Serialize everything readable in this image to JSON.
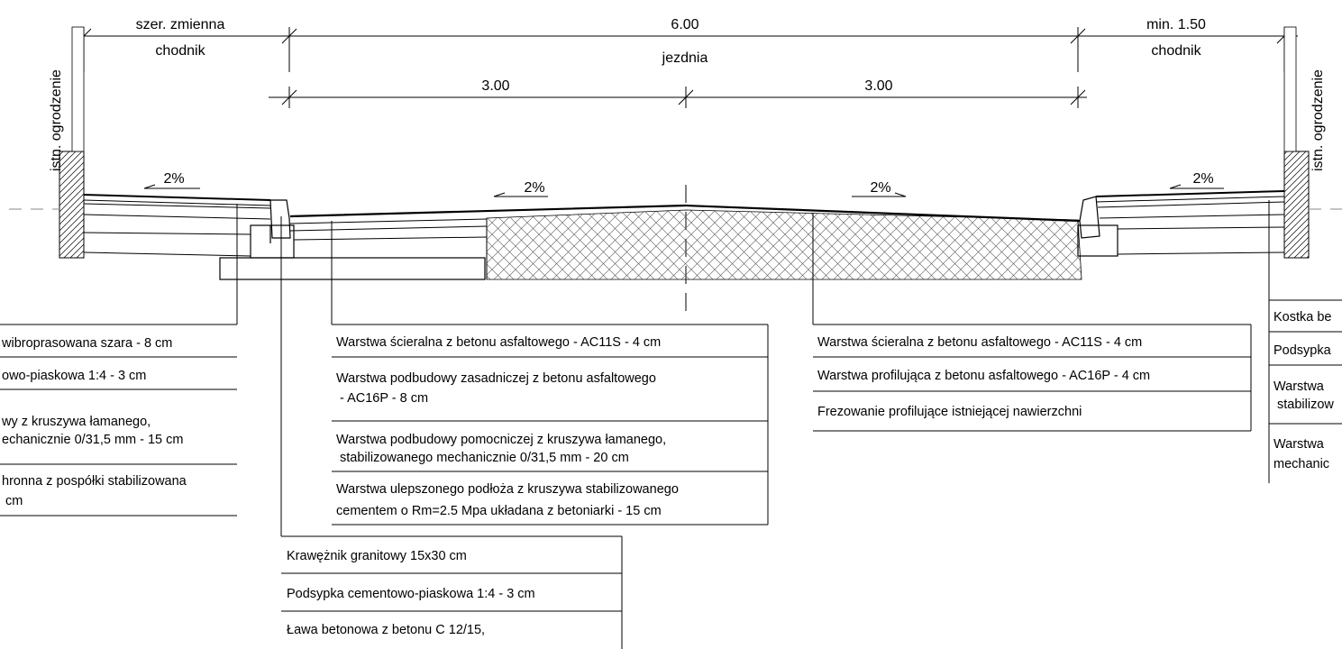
{
  "dimensions": {
    "left_walk_width": "szer. zmienna",
    "left_walk_name": "chodnik",
    "road_width": "6.00",
    "road_name": "jezdnia",
    "right_walk_width": "min. 1.50",
    "right_walk_name": "chodnik",
    "lane_left": "3.00",
    "lane_right": "3.00"
  },
  "fences": {
    "left": "istn. ogrodzenie",
    "right": "istn. ogrodzenie"
  },
  "slopes": {
    "left_walk": "2%",
    "road_left": "2%",
    "road_right": "2%",
    "right_walk": "2%"
  },
  "legend_left_walk": [
    [
      "wibroprasowana szara - 8 cm"
    ],
    [
      "owo-piaskowa 1:4 - 3 cm"
    ],
    [
      "wy z kruszywa łamanego,",
      "echanicznie 0/31,5 mm - 15 cm"
    ],
    [
      "hronna z pospółki stabilizowana",
      " cm"
    ]
  ],
  "legend_road_new": [
    [
      "Warstwa ścieralna z betonu asfaltowego - AC11S - 4 cm"
    ],
    [
      "Warstwa podbudowy zasadniczej z betonu asfaltowego",
      " - AC16P - 8 cm"
    ],
    [
      "Warstwa podbudowy pomocniczej z kruszywa łamanego,",
      " stabilizowanego mechanicznie 0/31,5 mm - 20 cm"
    ],
    [
      "Warstwa ulepszonego podłoża z kruszywa stabilizowanego",
      "cementem o Rm=2.5 Mpa układana z betoniarki - 15 cm"
    ]
  ],
  "legend_road_existing": [
    [
      "Warstwa ścieralna z betonu asfaltowego - AC11S - 4 cm"
    ],
    [
      "Warstwa profilująca z betonu asfaltowego - AC16P - 4 cm"
    ],
    [
      "Frezowanie profilujące istniejącej nawierzchni"
    ]
  ],
  "legend_curb": [
    [
      "Krawężnik granitowy 15x30 cm"
    ],
    [
      "Podsypka cementowo-piaskowa 1:4 - 3 cm"
    ],
    [
      "Ława betonowa z betonu C 12/15,"
    ]
  ],
  "legend_right_walk": [
    [
      "Kostka be"
    ],
    [
      "Podsypka"
    ],
    [
      "Warstwa",
      " stabilizow"
    ],
    [
      "Warstwa",
      "mechanic"
    ]
  ]
}
